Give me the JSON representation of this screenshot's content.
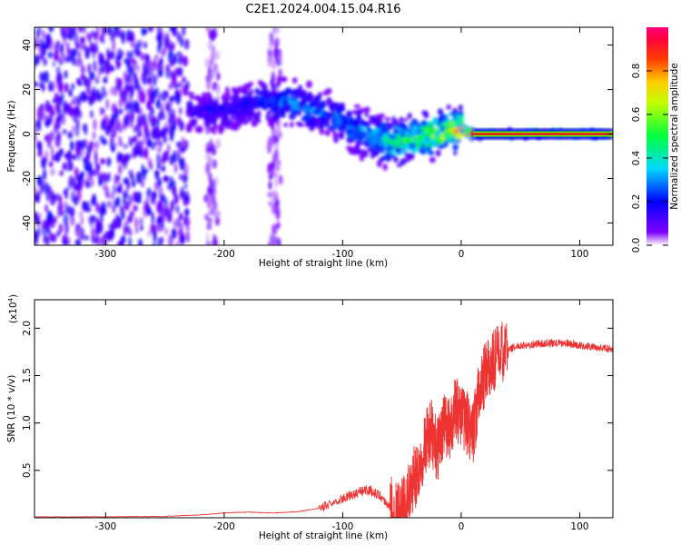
{
  "title": "C2E1.2024.004.15.04.R16",
  "chart_data": [
    {
      "type": "heatmap",
      "xlabel": "Height of straight line (km)",
      "ylabel": "Frequency (Hz)",
      "xlim": [
        -360,
        128
      ],
      "ylim": [
        -50,
        48
      ],
      "xticks": [
        -300,
        -200,
        -100,
        0,
        100
      ],
      "xtick_labels": [
        "-300",
        "-200",
        "-100",
        "0",
        "100"
      ],
      "yticks": [
        -40,
        -20,
        0,
        20,
        40
      ],
      "ytick_labels": [
        "-40",
        "-20",
        "0",
        "20",
        "40"
      ],
      "colorbar": {
        "label": "Normalized spectral amplitude",
        "range": [
          0.0,
          1.0
        ],
        "ticks": [
          0.0,
          0.2,
          0.4,
          0.6,
          0.8
        ],
        "tick_labels": [
          "0.0",
          "0.2",
          "0.4",
          "0.6",
          "0.8"
        ],
        "colormap": [
          "#ffffff",
          "#7d00ff",
          "#0000ff",
          "#00d8ff",
          "#00ff00",
          "#ffff00",
          "#ff8000",
          "#ff0000",
          "#ff0080"
        ]
      },
      "features": [
        {
          "name": "noise",
          "x_range": [
            -360,
            -230
          ],
          "freq_range": [
            -50,
            48
          ],
          "amplitude": 0.1
        },
        {
          "name": "noise band",
          "x_range": [
            -215,
            -205
          ],
          "freq_range": [
            -50,
            48
          ],
          "amplitude": 0.05
        },
        {
          "name": "noise band",
          "x_range": [
            -162,
            -152
          ],
          "freq_range": [
            -50,
            48
          ],
          "amplitude": 0.05
        },
        {
          "name": "echo",
          "x": [
            -230,
            -200,
            -170,
            -140,
            -110,
            -80,
            -60,
            -40,
            -20,
            0,
            10,
            128
          ],
          "center_freq": [
            10,
            10,
            14,
            14,
            8,
            0,
            -4,
            -2,
            0,
            2,
            0,
            0
          ],
          "amplitude": [
            0.15,
            0.2,
            0.25,
            0.3,
            0.3,
            0.35,
            0.45,
            0.5,
            0.6,
            0.7,
            0.8,
            0.85
          ]
        }
      ]
    },
    {
      "type": "line",
      "xlabel": "Height of straight line (km)",
      "ylabel": "SNR (10 * v/v)",
      "yscale_label": "(x10^4)",
      "xlim": [
        -360,
        128
      ],
      "ylim": [
        0,
        2.3
      ],
      "xticks": [
        -300,
        -200,
        -100,
        0,
        100
      ],
      "xtick_labels": [
        "-300",
        "-200",
        "-100",
        "0",
        "100"
      ],
      "yticks": [
        0.5,
        1.0,
        1.5,
        2.0
      ],
      "ytick_labels": [
        "0.5",
        "1.0",
        "1.5",
        "2.0"
      ],
      "color": "#ee3333",
      "x": [
        -360,
        -300,
        -250,
        -220,
        -200,
        -180,
        -160,
        -140,
        -120,
        -100,
        -90,
        -80,
        -70,
        -60,
        -55,
        -50,
        -45,
        -40,
        -35,
        -30,
        -25,
        -20,
        -15,
        -10,
        -5,
        0,
        5,
        10,
        15,
        20,
        25,
        30,
        40,
        50,
        60,
        70,
        80,
        90,
        100,
        110,
        120,
        128
      ],
      "y": [
        0.01,
        0.01,
        0.015,
        0.03,
        0.05,
        0.06,
        0.05,
        0.06,
        0.1,
        0.2,
        0.25,
        0.3,
        0.25,
        0.12,
        0.05,
        0.08,
        0.2,
        0.4,
        0.55,
        0.8,
        0.9,
        0.7,
        1.0,
        0.9,
        1.15,
        1.1,
        1.0,
        0.9,
        1.3,
        1.5,
        1.6,
        1.7,
        1.78,
        1.82,
        1.83,
        1.84,
        1.84,
        1.84,
        1.82,
        1.8,
        1.79,
        1.78
      ]
    }
  ]
}
